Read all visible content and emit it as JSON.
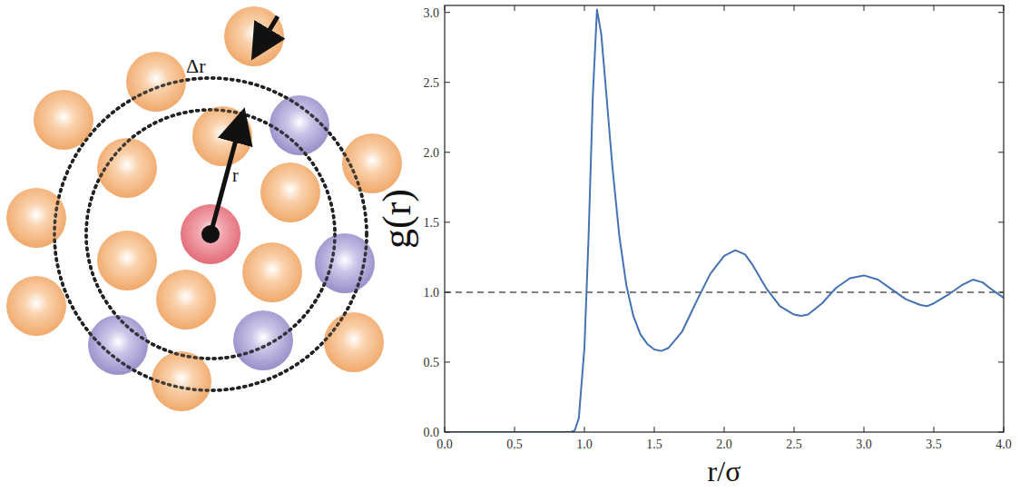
{
  "diagram": {
    "labels": {
      "r": "r",
      "delta_r": "Δr"
    }
  },
  "chart_data": {
    "type": "line",
    "x_label": "r/σ",
    "y_label": "g(r)",
    "x": [
      0,
      0.5,
      0.9,
      0.93,
      0.96,
      1.0,
      1.03,
      1.06,
      1.09,
      1.12,
      1.15,
      1.2,
      1.25,
      1.3,
      1.35,
      1.4,
      1.45,
      1.5,
      1.55,
      1.6,
      1.7,
      1.8,
      1.9,
      2.0,
      2.08,
      2.15,
      2.2,
      2.3,
      2.4,
      2.5,
      2.55,
      2.6,
      2.7,
      2.8,
      2.9,
      3.0,
      3.1,
      3.2,
      3.3,
      3.4,
      3.45,
      3.5,
      3.6,
      3.7,
      3.78,
      3.85,
      3.9,
      4.0
    ],
    "values": [
      0,
      0,
      0,
      0.01,
      0.1,
      0.6,
      1.4,
      2.4,
      3.02,
      2.85,
      2.5,
      1.9,
      1.4,
      1.05,
      0.83,
      0.7,
      0.63,
      0.59,
      0.58,
      0.6,
      0.72,
      0.93,
      1.13,
      1.26,
      1.3,
      1.27,
      1.2,
      1.03,
      0.9,
      0.84,
      0.83,
      0.84,
      0.92,
      1.03,
      1.1,
      1.12,
      1.09,
      1.02,
      0.95,
      0.91,
      0.9,
      0.92,
      0.98,
      1.05,
      1.09,
      1.07,
      1.03,
      0.96
    ],
    "color": "#4472b4",
    "line_style": "solid",
    "reference_line": 1,
    "xlim": [
      0,
      4
    ],
    "ylim": [
      0,
      3.05
    ],
    "xticks": [
      {
        "value": 0,
        "label": "0.0"
      },
      0.5,
      {
        "value": 1,
        "label": "1.0"
      },
      1.5,
      {
        "value": 2,
        "label": "2.0"
      },
      2.5,
      {
        "value": 3,
        "label": "3.0"
      },
      3.5,
      {
        "value": 4,
        "label": "4.0"
      }
    ],
    "yticks": [
      {
        "value": 0,
        "label": "0.0"
      },
      0.5,
      {
        "value": 1,
        "label": "1.0"
      },
      1.5,
      {
        "value": 2,
        "label": "2.0"
      },
      2.5,
      {
        "value": 3,
        "label": "3.0"
      }
    ],
    "grid": false
  }
}
